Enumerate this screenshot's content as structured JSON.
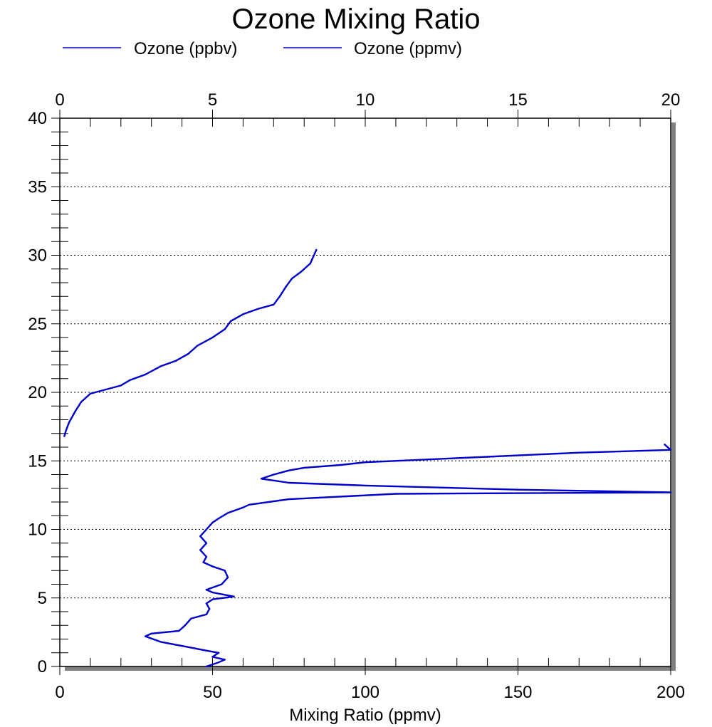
{
  "chart_data": {
    "type": "line",
    "title": "Ozone Mixing Ratio",
    "xlabel": "Mixing Ratio (ppmv)",
    "ylabel": "",
    "xlim": [
      0,
      200
    ],
    "x2lim": [
      0,
      20
    ],
    "ylim": [
      0,
      40
    ],
    "x_ticks": [
      "0",
      "50",
      "100",
      "150",
      "200"
    ],
    "x2_ticks": [
      "0",
      "5",
      "10",
      "15",
      "20"
    ],
    "y_ticks": [
      "0",
      "5",
      "10",
      "15",
      "20",
      "25",
      "30",
      "35",
      "40"
    ],
    "grid": "horizontal dotted",
    "legend_position": "top",
    "colors": {
      "series": "#0000cc",
      "shadow": "#808080"
    },
    "series": [
      {
        "name": "Ozone (ppbv)",
        "axis": "bottom",
        "points": [
          [
            48,
            0.0
          ],
          [
            52,
            0.3
          ],
          [
            54,
            0.5
          ],
          [
            50,
            0.7
          ],
          [
            52,
            1.0
          ],
          [
            47,
            1.2
          ],
          [
            40,
            1.5
          ],
          [
            33,
            1.8
          ],
          [
            28,
            2.2
          ],
          [
            30,
            2.4
          ],
          [
            39,
            2.6
          ],
          [
            41,
            3.0
          ],
          [
            43,
            3.5
          ],
          [
            48,
            3.8
          ],
          [
            49,
            4.2
          ],
          [
            48,
            4.6
          ],
          [
            50,
            4.9
          ],
          [
            57,
            5.1
          ],
          [
            50,
            5.4
          ],
          [
            48,
            5.6
          ],
          [
            53,
            6.0
          ],
          [
            55,
            6.5
          ],
          [
            54,
            7.0
          ],
          [
            50,
            7.3
          ],
          [
            47,
            7.6
          ],
          [
            48,
            8.0
          ],
          [
            46,
            8.5
          ],
          [
            48,
            9.0
          ],
          [
            46,
            9.5
          ],
          [
            48,
            10.0
          ],
          [
            50,
            10.5
          ],
          [
            52,
            10.8
          ],
          [
            55,
            11.2
          ],
          [
            60,
            11.6
          ],
          [
            62,
            11.8
          ],
          [
            75,
            12.2
          ],
          [
            110,
            12.6
          ],
          [
            200,
            12.7
          ],
          [
            150,
            12.9
          ],
          [
            100,
            13.2
          ],
          [
            75,
            13.4
          ],
          [
            66,
            13.7
          ],
          [
            70,
            14.0
          ],
          [
            75,
            14.3
          ],
          [
            80,
            14.5
          ],
          [
            92,
            14.7
          ],
          [
            100,
            14.9
          ],
          [
            140,
            15.3
          ],
          [
            170,
            15.6
          ],
          [
            185,
            15.7
          ],
          [
            200,
            15.8
          ],
          [
            198,
            16.2
          ]
        ]
      },
      {
        "name": "Ozone (ppmv)",
        "axis": "top",
        "points": [
          [
            0.15,
            16.8
          ],
          [
            0.2,
            17.2
          ],
          [
            0.3,
            17.8
          ],
          [
            0.5,
            18.6
          ],
          [
            0.7,
            19.3
          ],
          [
            1.0,
            19.9
          ],
          [
            1.5,
            20.2
          ],
          [
            2.0,
            20.5
          ],
          [
            2.3,
            20.9
          ],
          [
            2.8,
            21.3
          ],
          [
            3.3,
            21.9
          ],
          [
            3.8,
            22.3
          ],
          [
            4.2,
            22.8
          ],
          [
            4.5,
            23.4
          ],
          [
            5.0,
            24.0
          ],
          [
            5.4,
            24.6
          ],
          [
            5.6,
            25.2
          ],
          [
            6.0,
            25.7
          ],
          [
            6.5,
            26.1
          ],
          [
            7.0,
            26.4
          ],
          [
            7.2,
            27.0
          ],
          [
            7.4,
            27.7
          ],
          [
            7.6,
            28.3
          ],
          [
            7.9,
            28.8
          ],
          [
            8.2,
            29.4
          ],
          [
            8.3,
            29.9
          ],
          [
            8.4,
            30.4
          ]
        ]
      }
    ]
  }
}
